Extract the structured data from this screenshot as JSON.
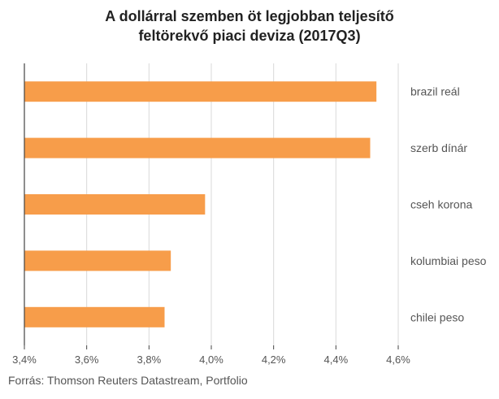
{
  "chart_data": {
    "type": "bar",
    "orientation": "horizontal",
    "title": "A dollárral szemben öt legjobban teljesítő feltörekvő piaci deviza (2017Q3)",
    "title_lines": [
      "A dollárral szemben öt legjobban teljesítő",
      "feltörekvő piaci deviza (2017Q3)"
    ],
    "categories": [
      "brazil reál",
      "szerb dínár",
      "cseh korona",
      "kolumbiai peso",
      "chilei peso"
    ],
    "values": [
      4.53,
      4.51,
      3.98,
      3.87,
      3.85
    ],
    "xlim": [
      3.4,
      4.6
    ],
    "x_ticks": [
      3.4,
      3.6,
      3.8,
      4.0,
      4.2,
      4.4,
      4.6
    ],
    "x_tick_labels": [
      "3,4%",
      "3,6%",
      "3,8%",
      "4,0%",
      "4,2%",
      "4,4%",
      "4,6%"
    ],
    "xlabel": "",
    "ylabel": "",
    "label_position": "right",
    "grid": true,
    "bar_color": "#F79D4A",
    "grid_color": "#D9D9D9",
    "axis_color": "#444444"
  },
  "source": "Forrás: Thomson Reuters Datastream, Portfolio"
}
